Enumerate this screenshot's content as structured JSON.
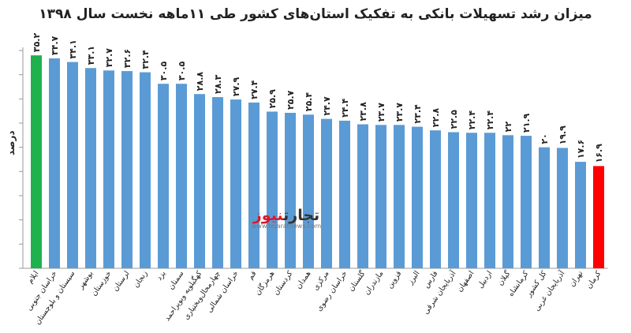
{
  "chart_data": {
    "type": "bar",
    "title": "میزان رشد تسهیلات بانکی به تفکیک استان‌های کشور طی ۱۱ماهه نخست سال ۱۳۹۸",
    "ylabel": "درصد",
    "categories": [
      "ایلام",
      "خراسان جنوبی",
      "سیستان و بلوچستان",
      "بوشهر",
      "خوزستان",
      "لرستان",
      "زنجان",
      "یزد",
      "سمنان",
      "کهگیلویه وبویراحمد",
      "چهارمحال‌وبختیاری",
      "خراسان شمالی",
      "قم",
      "هرمزگان",
      "کردستان",
      "همدان",
      "مرکزی",
      "خراسان رضوی",
      "گلستان",
      "مازندران",
      "قزوین",
      "البرز",
      "فارس",
      "آذربایجان شرقی",
      "اصفهان",
      "اردبیل",
      "گیلان",
      "کرمانشاه",
      "کل کشور",
      "آذربایجان غربی",
      "تهران",
      "کرمان"
    ],
    "values": [
      35.2,
      34.7,
      34.1,
      33.1,
      32.7,
      32.6,
      32.4,
      30.5,
      30.5,
      28.8,
      28.3,
      27.9,
      27.4,
      25.9,
      25.7,
      25.4,
      24.7,
      24.4,
      23.8,
      23.7,
      23.7,
      23.4,
      22.8,
      22.5,
      22.4,
      22.4,
      22,
      21.9,
      20,
      19.9,
      17.6,
      16.9
    ],
    "value_labels": [
      "۳۵.۲",
      "۳۴.۷",
      "۳۴.۱",
      "۳۳.۱",
      "۳۲.۷",
      "۳۲.۶",
      "۳۲.۴",
      "۳۰.۵",
      "۳۰.۵",
      "۲۸.۸",
      "۲۸.۳",
      "۲۷.۹",
      "۲۷.۴",
      "۲۵.۹",
      "۲۵.۷",
      "۲۵.۴",
      "۲۴.۷",
      "۲۴.۴",
      "۲۳.۸",
      "۲۳.۷",
      "۲۳.۷",
      "۲۳.۴",
      "۲۲.۸",
      "۲۲.۵",
      "۲۲.۴",
      "۲۲.۴",
      "۲۲",
      "۲۱.۹",
      "۲۰",
      "۱۹.۹",
      "۱۷.۶",
      "۱۶.۹"
    ],
    "ylim": [
      0,
      36
    ],
    "yticks": [
      0,
      4,
      8,
      12,
      16,
      20,
      24,
      28,
      32,
      36
    ],
    "grid": false,
    "colors": {
      "default": "#5b9bd5",
      "highest": "#1fb14e",
      "lowest": "#ff0000"
    },
    "highlight_first": "highest",
    "highlight_last": "lowest"
  },
  "watermark": {
    "logo_part1": "تجارت",
    "logo_part2": "نیوز",
    "url": "www.tejaratnews.com"
  }
}
